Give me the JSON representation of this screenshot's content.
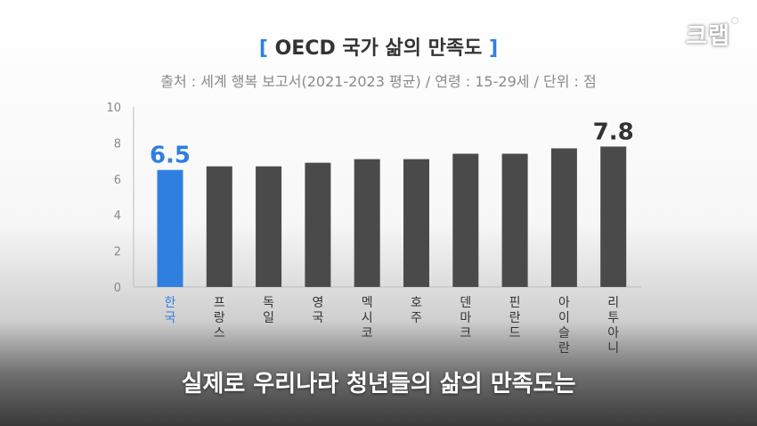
{
  "header": {
    "bracket_open": "[",
    "title": "OECD 국가 삶의 만족도",
    "bracket_close": "]",
    "subtitle": "출처 : 세계 행복 보고서(2021-2023 평균) / 연령 : 15-29세 / 단위 : 점"
  },
  "logo": {
    "text": "크랩"
  },
  "caption": {
    "text": "실제로 우리나라 청년들의 삶의 만족도는"
  },
  "colors": {
    "highlight": "#2f7fde",
    "bar": "#4a4a4a",
    "label": "#333333"
  },
  "chart_data": {
    "type": "bar",
    "categories": [
      "한국",
      "프랑스",
      "독일",
      "영국",
      "멕시코",
      "호주",
      "덴마크",
      "핀란드",
      "아이슬란드",
      "리투아니아"
    ],
    "values": [
      6.5,
      6.7,
      6.7,
      6.9,
      7.1,
      7.1,
      7.4,
      7.4,
      7.7,
      7.8
    ],
    "highlight_index": 0,
    "data_labels": [
      {
        "index": 0,
        "text": "6.5"
      },
      {
        "index": 9,
        "text": "7.8"
      }
    ],
    "yticks": [
      "0",
      "2",
      "4",
      "6",
      "8",
      "10"
    ],
    "ylim": [
      0,
      10
    ],
    "grid": false
  }
}
